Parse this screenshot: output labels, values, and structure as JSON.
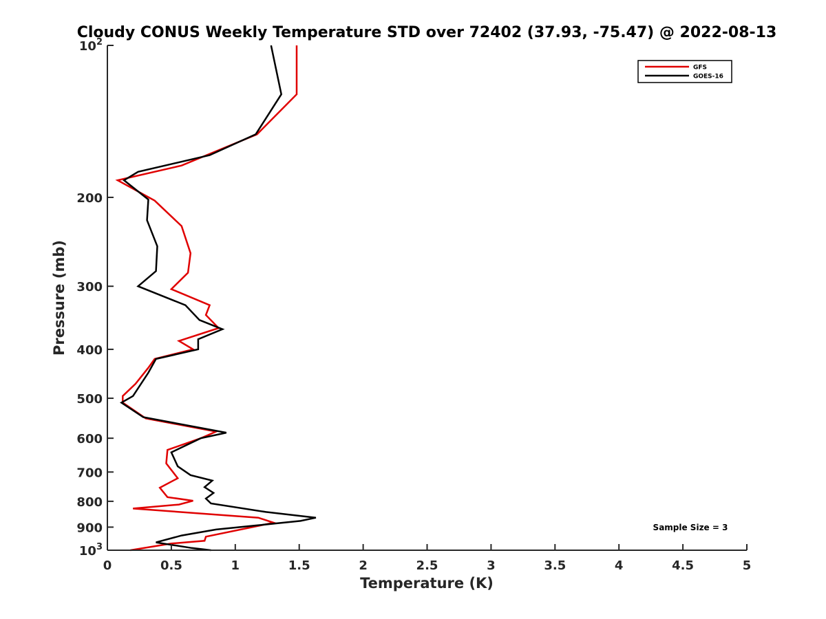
{
  "chart_data": {
    "type": "line",
    "title": "Cloudy CONUS Weekly Temperature STD over 72402 (37.93, -75.47) @ 2022-08-13",
    "xlabel": "Temperature (K)",
    "ylabel": "Pressure (mb)",
    "xlim": [
      0,
      5
    ],
    "ylim": [
      100,
      1000
    ],
    "yscale": "log",
    "y_reversed": true,
    "grid": false,
    "legend_position": "top-right",
    "x_ticks": [
      0,
      0.5,
      1,
      1.5,
      2,
      2.5,
      3,
      3.5,
      4,
      4.5,
      5
    ],
    "x_tick_labels": [
      "0",
      "0.5",
      "1",
      "1.5",
      "2",
      "2.5",
      "3",
      "3.5",
      "4",
      "4.5",
      "5"
    ],
    "y_ticks": [
      {
        "value": 100,
        "base": "10",
        "exp": "2"
      },
      {
        "value": 200,
        "label": "200"
      },
      {
        "value": 300,
        "label": "300"
      },
      {
        "value": 400,
        "label": "400"
      },
      {
        "value": 500,
        "label": "500"
      },
      {
        "value": 600,
        "label": "600"
      },
      {
        "value": 700,
        "label": "700"
      },
      {
        "value": 800,
        "label": "800"
      },
      {
        "value": 900,
        "label": "900"
      },
      {
        "value": 1000,
        "base": "10",
        "exp": "3"
      }
    ],
    "annotation": "Sample Size = 3",
    "series": [
      {
        "name": "GFS",
        "color": "#e00000",
        "points": [
          [
            1.48,
            100
          ],
          [
            1.48,
            125
          ],
          [
            1.17,
            150
          ],
          [
            0.58,
            173
          ],
          [
            0.08,
            185
          ],
          [
            0.37,
            203
          ],
          [
            0.58,
            228
          ],
          [
            0.65,
            258
          ],
          [
            0.63,
            282
          ],
          [
            0.5,
            304
          ],
          [
            0.8,
            327
          ],
          [
            0.77,
            342
          ],
          [
            0.87,
            363
          ],
          [
            0.56,
            385
          ],
          [
            0.67,
            400
          ],
          [
            0.37,
            418
          ],
          [
            0.32,
            435
          ],
          [
            0.22,
            468
          ],
          [
            0.12,
            495
          ],
          [
            0.12,
            510
          ],
          [
            0.3,
            548
          ],
          [
            0.85,
            582
          ],
          [
            0.73,
            600
          ],
          [
            0.47,
            633
          ],
          [
            0.46,
            673
          ],
          [
            0.55,
            720
          ],
          [
            0.41,
            752
          ],
          [
            0.47,
            785
          ],
          [
            0.67,
            798
          ],
          [
            0.56,
            812
          ],
          [
            0.2,
            827
          ],
          [
            1.18,
            862
          ],
          [
            1.3,
            882
          ],
          [
            0.77,
            940
          ],
          [
            0.76,
            958
          ],
          [
            0.5,
            970
          ],
          [
            0.18,
            1000
          ]
        ]
      },
      {
        "name": "GOES-16",
        "color": "#000000",
        "points": [
          [
            1.28,
            100
          ],
          [
            1.36,
            125
          ],
          [
            1.16,
            150
          ],
          [
            0.8,
            165
          ],
          [
            0.24,
            178
          ],
          [
            0.13,
            185
          ],
          [
            0.32,
            202
          ],
          [
            0.31,
            222
          ],
          [
            0.39,
            250
          ],
          [
            0.38,
            280
          ],
          [
            0.24,
            300
          ],
          [
            0.61,
            327
          ],
          [
            0.72,
            350
          ],
          [
            0.9,
            365
          ],
          [
            0.71,
            382
          ],
          [
            0.71,
            400
          ],
          [
            0.38,
            418
          ],
          [
            0.32,
            445
          ],
          [
            0.2,
            495
          ],
          [
            0.11,
            510
          ],
          [
            0.28,
            545
          ],
          [
            0.93,
            585
          ],
          [
            0.73,
            600
          ],
          [
            0.5,
            640
          ],
          [
            0.55,
            682
          ],
          [
            0.65,
            710
          ],
          [
            0.82,
            728
          ],
          [
            0.76,
            750
          ],
          [
            0.83,
            770
          ],
          [
            0.77,
            790
          ],
          [
            0.81,
            808
          ],
          [
            1.24,
            840
          ],
          [
            1.63,
            862
          ],
          [
            1.51,
            875
          ],
          [
            0.85,
            910
          ],
          [
            0.58,
            935
          ],
          [
            0.38,
            965
          ],
          [
            0.66,
            990
          ],
          [
            0.81,
            1000
          ]
        ]
      }
    ]
  }
}
